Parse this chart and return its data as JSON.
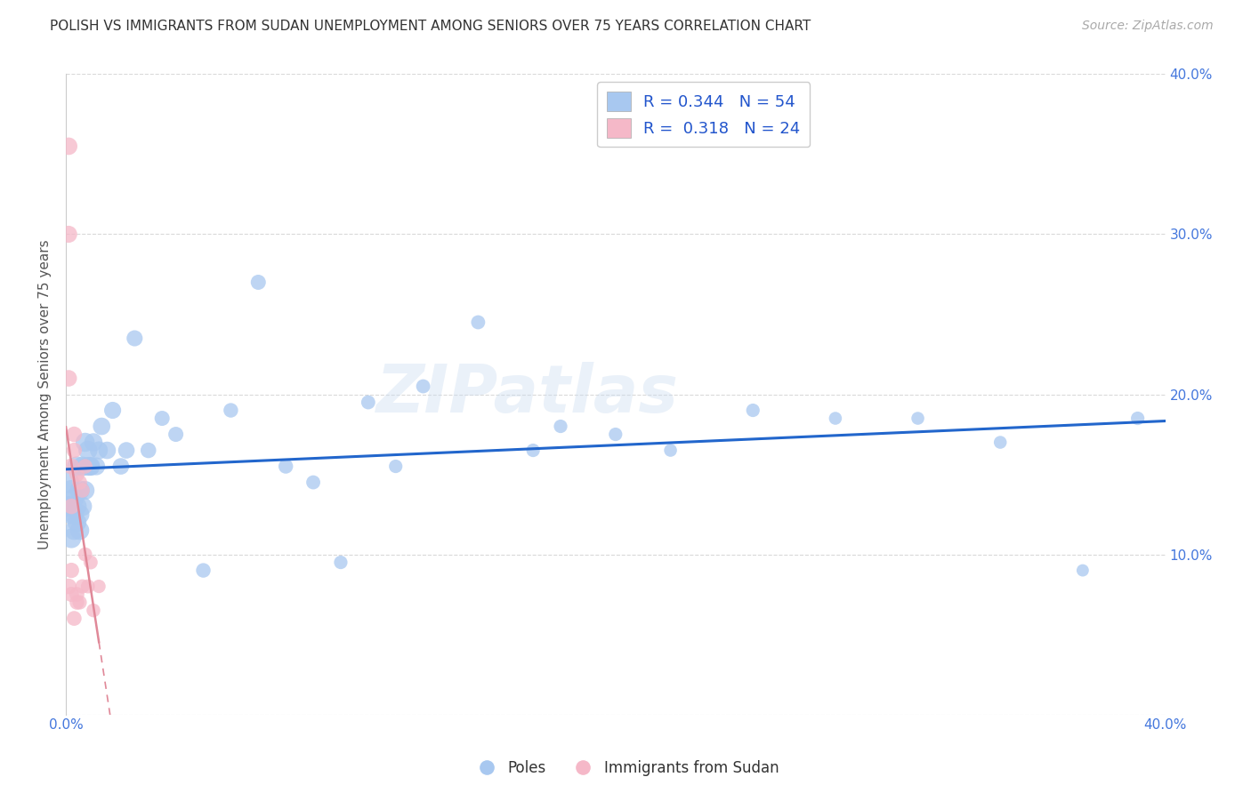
{
  "title": "POLISH VS IMMIGRANTS FROM SUDAN UNEMPLOYMENT AMONG SENIORS OVER 75 YEARS CORRELATION CHART",
  "source": "Source: ZipAtlas.com",
  "ylabel": "Unemployment Among Seniors over 75 years",
  "xlim": [
    0,
    0.4
  ],
  "ylim": [
    0,
    0.4
  ],
  "legend_R1": "0.344",
  "legend_N1": "54",
  "legend_R2": "0.318",
  "legend_N2": "24",
  "blue_color": "#a8c8f0",
  "pink_color": "#f5b8c8",
  "blue_line_color": "#2266cc",
  "pink_line_color": "#e08898",
  "title_color": "#333333",
  "tick_color": "#4477dd",
  "watermark": "ZIPatlas",
  "poles_x": [
    0.001,
    0.001,
    0.002,
    0.002,
    0.002,
    0.003,
    0.003,
    0.003,
    0.004,
    0.004,
    0.004,
    0.005,
    0.005,
    0.005,
    0.006,
    0.006,
    0.007,
    0.007,
    0.008,
    0.008,
    0.009,
    0.009,
    0.01,
    0.011,
    0.012,
    0.013,
    0.015,
    0.017,
    0.02,
    0.022,
    0.025,
    0.03,
    0.035,
    0.04,
    0.05,
    0.06,
    0.07,
    0.08,
    0.09,
    0.1,
    0.11,
    0.12,
    0.13,
    0.15,
    0.17,
    0.18,
    0.2,
    0.22,
    0.25,
    0.28,
    0.31,
    0.34,
    0.37,
    0.39
  ],
  "poles_y": [
    0.145,
    0.13,
    0.125,
    0.14,
    0.11,
    0.115,
    0.135,
    0.125,
    0.155,
    0.13,
    0.12,
    0.14,
    0.125,
    0.115,
    0.155,
    0.13,
    0.17,
    0.14,
    0.155,
    0.165,
    0.155,
    0.155,
    0.17,
    0.155,
    0.165,
    0.18,
    0.165,
    0.19,
    0.155,
    0.165,
    0.235,
    0.165,
    0.185,
    0.175,
    0.09,
    0.19,
    0.27,
    0.155,
    0.145,
    0.095,
    0.195,
    0.155,
    0.205,
    0.245,
    0.165,
    0.18,
    0.175,
    0.165,
    0.19,
    0.185,
    0.185,
    0.17,
    0.09,
    0.185
  ],
  "poles_size": [
    300,
    280,
    260,
    280,
    250,
    240,
    260,
    250,
    260,
    250,
    240,
    260,
    250,
    240,
    250,
    240,
    240,
    230,
    230,
    240,
    230,
    220,
    220,
    210,
    210,
    200,
    200,
    190,
    180,
    180,
    170,
    160,
    150,
    150,
    140,
    140,
    150,
    140,
    130,
    120,
    130,
    120,
    130,
    130,
    120,
    120,
    120,
    110,
    120,
    110,
    110,
    110,
    100,
    120
  ],
  "sudan_x": [
    0.001,
    0.001,
    0.001,
    0.001,
    0.002,
    0.002,
    0.002,
    0.002,
    0.003,
    0.003,
    0.003,
    0.004,
    0.004,
    0.004,
    0.005,
    0.005,
    0.006,
    0.006,
    0.007,
    0.007,
    0.008,
    0.009,
    0.01,
    0.012
  ],
  "sudan_y": [
    0.355,
    0.3,
    0.21,
    0.08,
    0.155,
    0.13,
    0.09,
    0.075,
    0.175,
    0.165,
    0.06,
    0.15,
    0.075,
    0.07,
    0.145,
    0.07,
    0.14,
    0.08,
    0.155,
    0.1,
    0.08,
    0.095,
    0.065,
    0.08
  ],
  "sudan_size": [
    200,
    190,
    180,
    160,
    170,
    160,
    155,
    150,
    160,
    155,
    145,
    150,
    145,
    140,
    145,
    135,
    140,
    135,
    140,
    130,
    130,
    130,
    125,
    120
  ]
}
